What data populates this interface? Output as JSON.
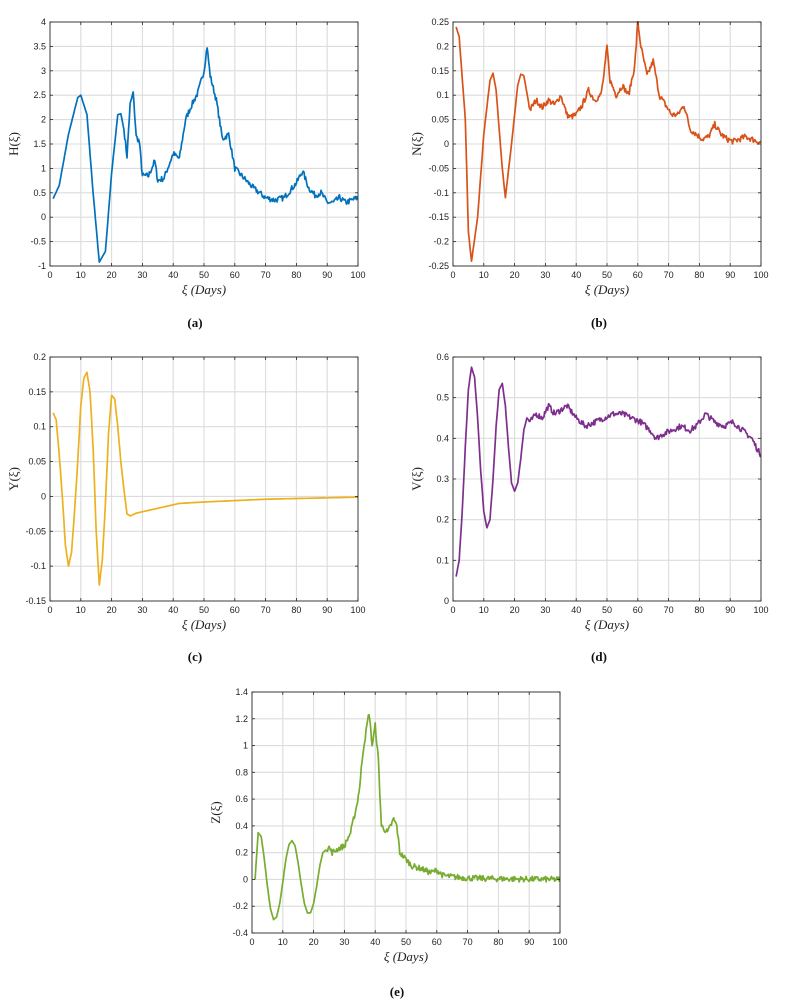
{
  "chart_data": [
    {
      "type": "line",
      "id": "a",
      "caption": "(a)",
      "xlabel": "ξ (Days)",
      "ylabel": "H(ξ)",
      "color": "#0072BD",
      "xlim": [
        0,
        100
      ],
      "ylim": [
        -1,
        4
      ],
      "xticks": [
        0,
        10,
        20,
        30,
        40,
        50,
        60,
        70,
        80,
        90,
        100
      ],
      "yticks": [
        -1,
        -0.5,
        0,
        0.5,
        1,
        1.5,
        2,
        2.5,
        3,
        3.5,
        4
      ],
      "xtick_labels": [
        "0",
        "10",
        "20",
        "30",
        "40",
        "50",
        "60",
        "70",
        "80",
        "90",
        "100"
      ],
      "ytick_labels": [
        "-1",
        "-0.5",
        "0",
        "0.5",
        "1",
        "1.5",
        "2",
        "2.5",
        "3",
        "3.5",
        "4"
      ],
      "series": [
        {
          "name": "H",
          "x": [
            1,
            3,
            6,
            9,
            10,
            12,
            14,
            16,
            18,
            20,
            22,
            23,
            24,
            25,
            26,
            27,
            28,
            29,
            30,
            32,
            34,
            35,
            37,
            40,
            42,
            44,
            46,
            48,
            50,
            51,
            52,
            54,
            56,
            58,
            60,
            63,
            66,
            70,
            73,
            76,
            80,
            82,
            84,
            86,
            88,
            90,
            92,
            94,
            96,
            98,
            100
          ],
          "values": [
            0.38,
            0.65,
            1.7,
            2.45,
            2.5,
            2.1,
            0.5,
            -0.92,
            -0.7,
            0.9,
            2.1,
            2.12,
            1.8,
            1.25,
            2.3,
            2.55,
            1.65,
            1.55,
            0.85,
            0.85,
            1.15,
            0.75,
            0.8,
            1.3,
            1.2,
            2.0,
            2.3,
            2.55,
            3.0,
            3.5,
            2.9,
            2.4,
            1.6,
            1.7,
            1.0,
            0.8,
            0.6,
            0.4,
            0.35,
            0.4,
            0.7,
            0.95,
            0.6,
            0.45,
            0.5,
            0.3,
            0.3,
            0.4,
            0.3,
            0.35,
            0.4
          ]
        }
      ]
    },
    {
      "type": "line",
      "id": "b",
      "caption": "(b)",
      "xlabel": "ξ (Days)",
      "ylabel": "N(ξ)",
      "color": "#D95319",
      "xlim": [
        0,
        100
      ],
      "ylim": [
        -0.25,
        0.25
      ],
      "xticks": [
        0,
        10,
        20,
        30,
        40,
        50,
        60,
        70,
        80,
        90,
        100
      ],
      "yticks": [
        -0.25,
        -0.2,
        -0.15,
        -0.1,
        -0.05,
        0,
        0.05,
        0.1,
        0.15,
        0.2,
        0.25
      ],
      "xtick_labels": [
        "0",
        "10",
        "20",
        "30",
        "40",
        "50",
        "60",
        "70",
        "80",
        "90",
        "100"
      ],
      "ytick_labels": [
        "-0.25",
        "-0.2",
        "-0.15",
        "-0.1",
        "-0.05",
        "0",
        "0.05",
        "0.1",
        "0.15",
        "0.2",
        "0.25"
      ],
      "series": [
        {
          "name": "N",
          "x": [
            1,
            2,
            4,
            5,
            6,
            8,
            10,
            12,
            13,
            14,
            16,
            17,
            19,
            21,
            22,
            23,
            25,
            26,
            27,
            29,
            31,
            33,
            35,
            37,
            38,
            40,
            42,
            44,
            46,
            48,
            49,
            50,
            51,
            53,
            55,
            57,
            59,
            60,
            61,
            63,
            65,
            67,
            69,
            71,
            73,
            75,
            77,
            79,
            81,
            83,
            85,
            87,
            89,
            91,
            93,
            95,
            97,
            99,
            100
          ],
          "values": [
            0.24,
            0.22,
            0.05,
            -0.18,
            -0.24,
            -0.15,
            0.02,
            0.13,
            0.145,
            0.11,
            -0.05,
            -0.11,
            0.0,
            0.12,
            0.143,
            0.14,
            0.07,
            0.08,
            0.09,
            0.075,
            0.09,
            0.08,
            0.1,
            0.06,
            0.055,
            0.06,
            0.08,
            0.11,
            0.09,
            0.1,
            0.14,
            0.2,
            0.13,
            0.1,
            0.12,
            0.1,
            0.16,
            0.25,
            0.2,
            0.14,
            0.17,
            0.1,
            0.08,
            0.06,
            0.06,
            0.08,
            0.03,
            0.02,
            0.01,
            0.015,
            0.04,
            0.02,
            0.01,
            0.005,
            0.01,
            0.015,
            0.01,
            0.005,
            0.003
          ]
        }
      ]
    },
    {
      "type": "line",
      "id": "c",
      "caption": "(c)",
      "xlabel": "ξ (Days)",
      "ylabel": "Y(ξ)",
      "color": "#EDB120",
      "xlim": [
        0,
        100
      ],
      "ylim": [
        -0.15,
        0.2
      ],
      "xticks": [
        0,
        10,
        20,
        30,
        40,
        50,
        60,
        70,
        80,
        90,
        100
      ],
      "yticks": [
        -0.15,
        -0.1,
        -0.05,
        0,
        0.05,
        0.1,
        0.15,
        0.2
      ],
      "xtick_labels": [
        "0",
        "10",
        "20",
        "30",
        "40",
        "50",
        "60",
        "70",
        "80",
        "90",
        "100"
      ],
      "ytick_labels": [
        "-0.15",
        "-0.1",
        "-0.05",
        "0",
        "0.05",
        "0.1",
        "0.15",
        "0.2"
      ],
      "series": [
        {
          "name": "Y",
          "x": [
            1,
            2,
            3,
            4,
            5,
            6,
            7,
            8,
            9,
            10,
            11,
            12,
            13,
            14,
            15,
            16,
            17,
            18,
            19,
            20,
            21,
            22,
            23,
            24,
            25,
            26,
            28,
            30,
            34,
            38,
            42,
            50,
            60,
            70,
            80,
            90,
            100
          ],
          "values": [
            0.12,
            0.11,
            0.06,
            0.0,
            -0.07,
            -0.1,
            -0.08,
            -0.02,
            0.05,
            0.13,
            0.17,
            0.178,
            0.15,
            0.07,
            -0.05,
            -0.127,
            -0.09,
            -0.01,
            0.09,
            0.145,
            0.14,
            0.1,
            0.05,
            0.01,
            -0.025,
            -0.028,
            -0.024,
            -0.022,
            -0.018,
            -0.014,
            -0.01,
            -0.008,
            -0.006,
            -0.004,
            -0.003,
            -0.002,
            -0.001
          ]
        }
      ]
    },
    {
      "type": "line",
      "id": "d",
      "caption": "(d)",
      "xlabel": "ξ (Days)",
      "ylabel": "V(ξ)",
      "color": "#7E2F8E",
      "xlim": [
        0,
        100
      ],
      "ylim": [
        0,
        0.6
      ],
      "xticks": [
        0,
        10,
        20,
        30,
        40,
        50,
        60,
        70,
        80,
        90,
        100
      ],
      "yticks": [
        0,
        0.1,
        0.2,
        0.3,
        0.4,
        0.5,
        0.6
      ],
      "xtick_labels": [
        "0",
        "10",
        "20",
        "30",
        "40",
        "50",
        "60",
        "70",
        "80",
        "90",
        "100"
      ],
      "ytick_labels": [
        "0",
        "0.1",
        "0.2",
        "0.3",
        "0.4",
        "0.5",
        "0.6"
      ],
      "series": [
        {
          "name": "V",
          "x": [
            1,
            2,
            3,
            4,
            5,
            6,
            7,
            8,
            9,
            10,
            11,
            12,
            13,
            14,
            15,
            16,
            17,
            18,
            19,
            20,
            21,
            22,
            23,
            24,
            25,
            27,
            29,
            31,
            33,
            35,
            37,
            40,
            43,
            46,
            49,
            52,
            55,
            58,
            61,
            64,
            66,
            68,
            71,
            74,
            77,
            79,
            82,
            85,
            88,
            91,
            94,
            97,
            99,
            100
          ],
          "values": [
            0.06,
            0.1,
            0.22,
            0.38,
            0.52,
            0.575,
            0.55,
            0.45,
            0.32,
            0.22,
            0.18,
            0.2,
            0.3,
            0.43,
            0.52,
            0.535,
            0.48,
            0.38,
            0.29,
            0.27,
            0.29,
            0.35,
            0.42,
            0.45,
            0.44,
            0.46,
            0.45,
            0.48,
            0.46,
            0.47,
            0.48,
            0.45,
            0.43,
            0.44,
            0.45,
            0.46,
            0.46,
            0.45,
            0.44,
            0.42,
            0.4,
            0.41,
            0.42,
            0.43,
            0.42,
            0.43,
            0.46,
            0.44,
            0.43,
            0.44,
            0.42,
            0.4,
            0.37,
            0.36
          ]
        }
      ]
    },
    {
      "type": "line",
      "id": "e",
      "caption": "(e)",
      "xlabel": "ξ (Days)",
      "ylabel": "Z(ξ)",
      "color": "#77AC30",
      "xlim": [
        0,
        100
      ],
      "ylim": [
        -0.4,
        1.4
      ],
      "xticks": [
        0,
        10,
        20,
        30,
        40,
        50,
        60,
        70,
        80,
        90,
        100
      ],
      "yticks": [
        -0.4,
        -0.2,
        0,
        0.2,
        0.4,
        0.6,
        0.8,
        1,
        1.2,
        1.4
      ],
      "xtick_labels": [
        "0",
        "10",
        "20",
        "30",
        "40",
        "50",
        "60",
        "70",
        "80",
        "90",
        "100"
      ],
      "ytick_labels": [
        "-0.4",
        "-0.2",
        "0",
        "0.2",
        "0.4",
        "0.6",
        "0.8",
        "1",
        "1.2",
        "1.4"
      ],
      "series": [
        {
          "name": "Z",
          "x": [
            1,
            2,
            3,
            4,
            5,
            6,
            7,
            8,
            9,
            10,
            11,
            12,
            13,
            14,
            15,
            16,
            17,
            18,
            19,
            20,
            21,
            22,
            23,
            24,
            25,
            26,
            28,
            30,
            32,
            34,
            35,
            36,
            37,
            38,
            39,
            40,
            41,
            42,
            44,
            46,
            47,
            48,
            50,
            52,
            55,
            58,
            60,
            62,
            65,
            70,
            80,
            90,
            100
          ],
          "values": [
            0.0,
            0.35,
            0.32,
            0.15,
            -0.05,
            -0.22,
            -0.3,
            -0.28,
            -0.18,
            -0.02,
            0.15,
            0.26,
            0.29,
            0.25,
            0.12,
            -0.04,
            -0.18,
            -0.25,
            -0.25,
            -0.18,
            -0.05,
            0.1,
            0.2,
            0.22,
            0.24,
            0.2,
            0.23,
            0.25,
            0.35,
            0.55,
            0.7,
            0.95,
            1.1,
            1.25,
            1.0,
            1.15,
            0.9,
            0.4,
            0.35,
            0.45,
            0.4,
            0.2,
            0.15,
            0.1,
            0.08,
            0.05,
            0.07,
            0.03,
            0.02,
            0.01,
            0.005,
            0.002,
            0.0
          ]
        }
      ]
    }
  ]
}
